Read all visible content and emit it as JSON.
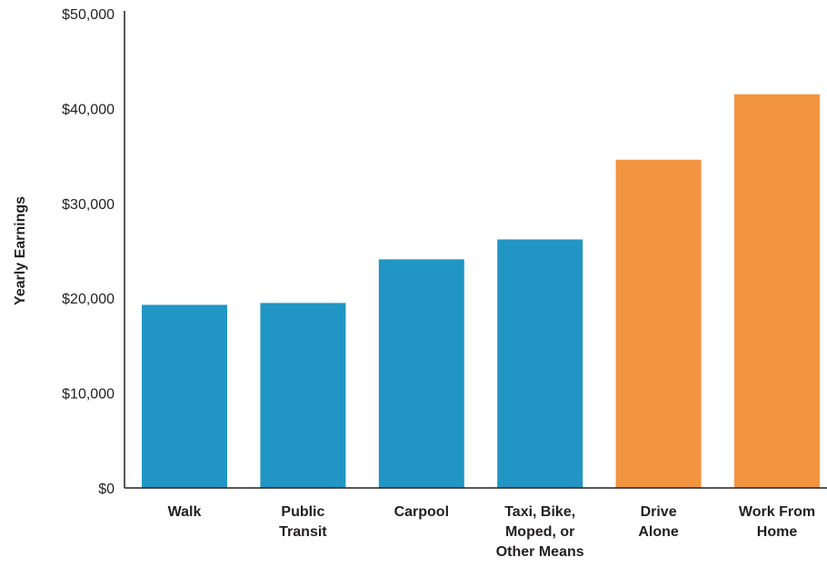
{
  "chart_data": {
    "type": "bar",
    "title": "",
    "xlabel": "",
    "ylabel": "Yearly Earnings",
    "ylim": [
      0,
      50000
    ],
    "y_ticks": [
      {
        "value": 0,
        "label": "$0"
      },
      {
        "value": 10000,
        "label": "$10,000"
      },
      {
        "value": 20000,
        "label": "$20,000"
      },
      {
        "value": 30000,
        "label": "$30,000"
      },
      {
        "value": 40000,
        "label": "$40,000"
      },
      {
        "value": 50000,
        "label": "$50,000"
      }
    ],
    "categories": [
      [
        "Walk"
      ],
      [
        "Public",
        "Transit"
      ],
      [
        "Carpool"
      ],
      [
        "Taxi, Bike,",
        "Moped, or",
        "Other Means"
      ],
      [
        "Drive",
        "Alone"
      ],
      [
        "Work From",
        "Home"
      ]
    ],
    "values": [
      19300,
      19500,
      24100,
      26200,
      34600,
      41500
    ],
    "bar_colors": [
      "#2196c4",
      "#2196c4",
      "#2196c4",
      "#2196c4",
      "#f39441",
      "#f39441"
    ],
    "grid": false,
    "legend": "none"
  }
}
